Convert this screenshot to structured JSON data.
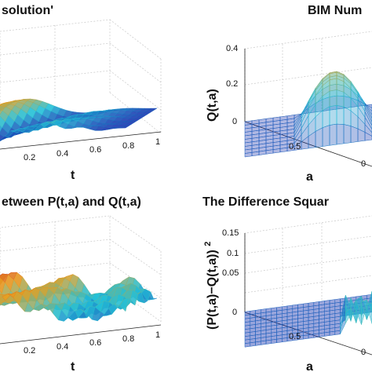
{
  "colors": {
    "mesh_low": "#1a1aa8",
    "mesh_mid": "#22c0d8",
    "mesh_high": "#e8a020",
    "peak": "#d02020"
  },
  "chart_data": [
    {
      "type": "surface",
      "title": "solution'",
      "xlabel": "t",
      "x_ticks": [
        "0.2",
        "0.4",
        "0.6",
        "0.8",
        "1"
      ],
      "z_ticks": []
    },
    {
      "type": "surface",
      "title": "BIM Num",
      "xlabel": "a",
      "zlabel": "Q(t,a)",
      "x_ticks": [
        "0.5",
        "0"
      ],
      "z_ticks": [
        "0.4",
        "0.2",
        "0"
      ],
      "zlim": [
        0,
        0.4
      ]
    },
    {
      "type": "surface",
      "title": "etween P(t,a) and Q(t,a)",
      "xlabel": "t",
      "x_ticks": [
        "0.2",
        "0.4",
        "0.6",
        "0.8",
        "1"
      ],
      "z_ticks": []
    },
    {
      "type": "surface",
      "title": "The Difference Squar",
      "xlabel": "a",
      "zlabel": "(P(t,a)−Q(t,a))",
      "zlabel_sup": "2",
      "x_ticks": [
        "0.5",
        "0"
      ],
      "z_ticks": [
        "0.15",
        "0.1",
        "0.05",
        "0"
      ],
      "zlim": [
        0,
        0.15
      ]
    }
  ]
}
